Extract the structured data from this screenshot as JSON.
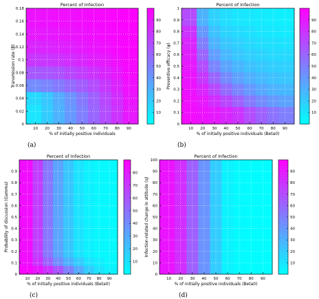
{
  "chart_data": [
    {
      "type": "heatmap",
      "panel": "(a)",
      "title": "Percent of Infection",
      "xlabel": "% of initially positive individuals",
      "ylabel": "Transmission rate (β)",
      "xlim": [
        2,
        98
      ],
      "ylim": [
        0,
        0.18
      ],
      "xticks": [
        10,
        20,
        30,
        40,
        50,
        60,
        70,
        80,
        90
      ],
      "yticks": [
        0,
        0.02,
        0.04,
        0.06,
        0.08,
        0.1,
        0.12,
        0.14,
        0.16,
        0.18
      ],
      "colorbar": {
        "ticks": [
          10,
          20,
          30,
          40,
          50,
          60,
          70,
          80,
          90
        ],
        "range": [
          0,
          100
        ]
      },
      "x": [
        10,
        20,
        30,
        40,
        50,
        60,
        70,
        80,
        90
      ],
      "y": [
        0.02,
        0.04,
        0.06,
        0.08,
        0.1,
        0.12,
        0.14,
        0.16
      ],
      "z": [
        [
          10,
          20,
          30,
          40,
          50,
          60,
          70,
          80,
          90
        ],
        [
          15,
          22,
          32,
          42,
          52,
          62,
          72,
          82,
          92
        ],
        [
          45,
          48,
          52,
          58,
          64,
          70,
          78,
          86,
          94
        ],
        [
          65,
          66,
          68,
          72,
          76,
          80,
          85,
          90,
          96
        ],
        [
          78,
          79,
          80,
          82,
          85,
          88,
          90,
          94,
          97
        ],
        [
          85,
          86,
          87,
          88,
          90,
          92,
          94,
          96,
          98
        ],
        [
          90,
          90,
          91,
          92,
          93,
          94,
          96,
          97,
          98
        ],
        [
          93,
          93,
          94,
          94,
          95,
          96,
          97,
          98,
          99
        ]
      ]
    },
    {
      "type": "heatmap",
      "panel": "(b)",
      "title": "Percent of Infection",
      "xlabel": "% of initially positive individuals (Beta0)",
      "ylabel": "Preventive efficacy (φ)",
      "xlim": [
        2,
        98
      ],
      "ylim": [
        0,
        1
      ],
      "xticks": [
        10,
        20,
        30,
        40,
        50,
        60,
        70,
        80,
        90
      ],
      "yticks": [
        0,
        0.1,
        0.2,
        0.3,
        0.4,
        0.5,
        0.6,
        0.7,
        0.8,
        0.9,
        1
      ],
      "colorbar": {
        "ticks": [
          10,
          20,
          30,
          40,
          50,
          60,
          70,
          80,
          90
        ],
        "range": [
          0,
          100
        ]
      },
      "x": [
        10,
        20,
        30,
        40,
        50,
        60,
        70,
        80,
        90
      ],
      "y": [
        0.1,
        0.2,
        0.3,
        0.4,
        0.5,
        0.6,
        0.7,
        0.8,
        0.9
      ],
      "z": [
        [
          95,
          93,
          90,
          85,
          80,
          70,
          62,
          55,
          50
        ],
        [
          94,
          90,
          82,
          72,
          62,
          52,
          45,
          40,
          36
        ],
        [
          93,
          85,
          72,
          58,
          48,
          40,
          34,
          30,
          28
        ],
        [
          92,
          78,
          60,
          46,
          37,
          31,
          27,
          24,
          22
        ],
        [
          90,
          70,
          48,
          36,
          29,
          24,
          21,
          19,
          18
        ],
        [
          88,
          60,
          38,
          28,
          22,
          19,
          17,
          15,
          14
        ],
        [
          85,
          50,
          30,
          22,
          18,
          15,
          13,
          12,
          11
        ],
        [
          80,
          40,
          24,
          17,
          14,
          12,
          10,
          9,
          8
        ],
        [
          70,
          30,
          18,
          13,
          10,
          9,
          8,
          7,
          6
        ]
      ]
    },
    {
      "type": "heatmap",
      "panel": "(c)",
      "title": "Percent of Infection",
      "xlabel": "% of initially positive individuals (Beta0)",
      "ylabel": "Probability of discussion (Gamma)",
      "xlim": [
        2,
        98
      ],
      "ylim": [
        0,
        1
      ],
      "xticks": [
        10,
        20,
        30,
        40,
        50,
        60,
        70,
        80,
        90
      ],
      "yticks": [
        0,
        0.1,
        0.2,
        0.3,
        0.4,
        0.5,
        0.6,
        0.7,
        0.8,
        0.9
      ],
      "colorbar": {
        "ticks": [
          10,
          20,
          30,
          40,
          50,
          60,
          70,
          80
        ],
        "range": [
          0,
          90
        ]
      },
      "x": [
        10,
        20,
        30,
        40,
        50,
        60,
        70,
        80,
        90
      ],
      "y": [
        0.05,
        0.1,
        0.2,
        0.3,
        0.4,
        0.5,
        0.6,
        0.7,
        0.8,
        0.9
      ],
      "z": [
        [
          88,
          82,
          72,
          60,
          45,
          30,
          18,
          10,
          5
        ],
        [
          85,
          72,
          55,
          40,
          28,
          18,
          10,
          6,
          3
        ],
        [
          85,
          68,
          48,
          32,
          20,
          10,
          5,
          3,
          2
        ],
        [
          85,
          68,
          48,
          32,
          20,
          10,
          5,
          3,
          2
        ],
        [
          85,
          68,
          48,
          32,
          20,
          10,
          5,
          3,
          2
        ],
        [
          85,
          68,
          48,
          32,
          20,
          10,
          5,
          3,
          2
        ],
        [
          85,
          68,
          48,
          32,
          20,
          10,
          5,
          3,
          2
        ],
        [
          85,
          68,
          48,
          32,
          20,
          10,
          5,
          3,
          2
        ],
        [
          85,
          68,
          48,
          32,
          20,
          10,
          5,
          3,
          2
        ],
        [
          85,
          68,
          48,
          32,
          20,
          10,
          5,
          3,
          2
        ]
      ]
    },
    {
      "type": "heatmap",
      "panel": "(d)",
      "title": "Percent of Infection",
      "xlabel": "% of initially positive individuals (Beta0)",
      "ylabel": "Infection-related change in attitude (q)",
      "xlim": [
        2,
        98
      ],
      "ylim": [
        0,
        100
      ],
      "xticks": [
        10,
        20,
        30,
        40,
        50,
        60,
        70,
        80,
        90
      ],
      "yticks": [
        0,
        10,
        20,
        30,
        40,
        50,
        60,
        70,
        80,
        90,
        100
      ],
      "colorbar": {
        "ticks": [
          10,
          20,
          30,
          40,
          50,
          60,
          70,
          80,
          90
        ],
        "range": [
          0,
          100
        ]
      },
      "x": [
        10,
        20,
        30,
        40,
        50,
        60,
        70,
        80,
        90
      ],
      "y": [
        10,
        30,
        50,
        70,
        90
      ],
      "z": [
        [
          92,
          82,
          62,
          42,
          20,
          5,
          2,
          1,
          1
        ],
        [
          92,
          82,
          62,
          42,
          20,
          5,
          2,
          1,
          1
        ],
        [
          92,
          82,
          62,
          42,
          20,
          5,
          2,
          1,
          1
        ],
        [
          92,
          82,
          62,
          42,
          20,
          5,
          2,
          1,
          1
        ],
        [
          92,
          82,
          62,
          42,
          20,
          5,
          2,
          1,
          1
        ]
      ]
    }
  ]
}
